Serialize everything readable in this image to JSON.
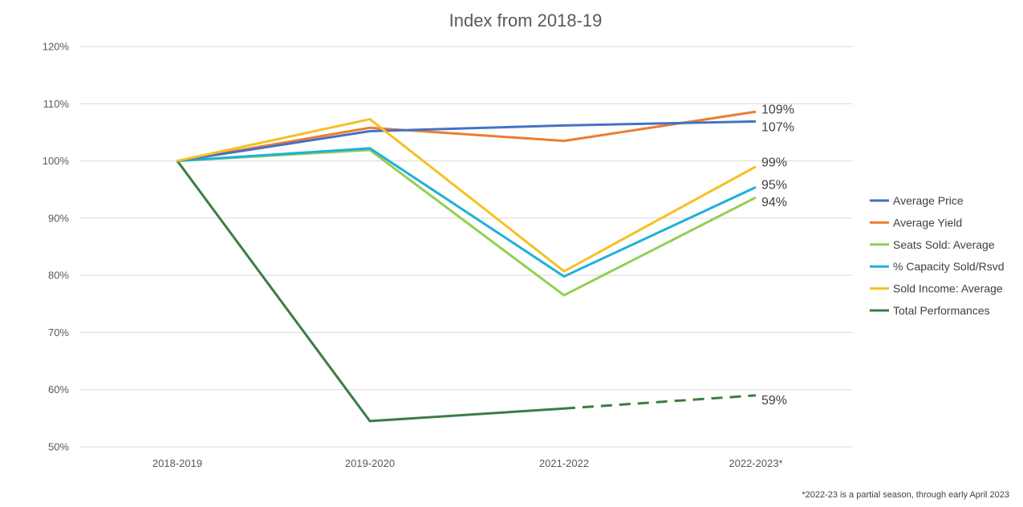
{
  "chart_data": {
    "type": "line",
    "title": "Index from 2018-19",
    "categories": [
      "2018-2019",
      "2019-2020",
      "2021-2022",
      "2022-2023*"
    ],
    "ylim": [
      0.5,
      1.2
    ],
    "yticks": [
      "50%",
      "60%",
      "70%",
      "80%",
      "90%",
      "100%",
      "110%",
      "120%"
    ],
    "grid": true,
    "legend_position": "right",
    "series": [
      {
        "name": "Average Price",
        "color": "#4472C4",
        "values": [
          1.0,
          1.052,
          1.062,
          1.069
        ],
        "end_label": "107%"
      },
      {
        "name": "Average Yield",
        "color": "#ED7D31",
        "values": [
          1.0,
          1.058,
          1.035,
          1.086
        ],
        "end_label": "109%"
      },
      {
        "name": "Seats Sold: Average",
        "color": "#92D050",
        "values": [
          1.0,
          1.019,
          0.765,
          0.936
        ],
        "end_label": "94%"
      },
      {
        "name": "% Capacity Sold/Rsvd",
        "color": "#1FB0D8",
        "values": [
          1.0,
          1.022,
          0.798,
          0.954
        ],
        "end_label": "95%"
      },
      {
        "name": "Sold Income: Average",
        "color": "#F5C022",
        "values": [
          1.0,
          1.073,
          0.807,
          0.99
        ],
        "end_label": "99%"
      },
      {
        "name": "Total Performances",
        "color": "#3A7D44",
        "values": [
          1.0,
          0.545,
          0.567,
          0.59
        ],
        "end_label": "59%",
        "dashed_last_segment": true
      }
    ],
    "footnote": "*2022-23 is a partial season, through early April 2023"
  }
}
